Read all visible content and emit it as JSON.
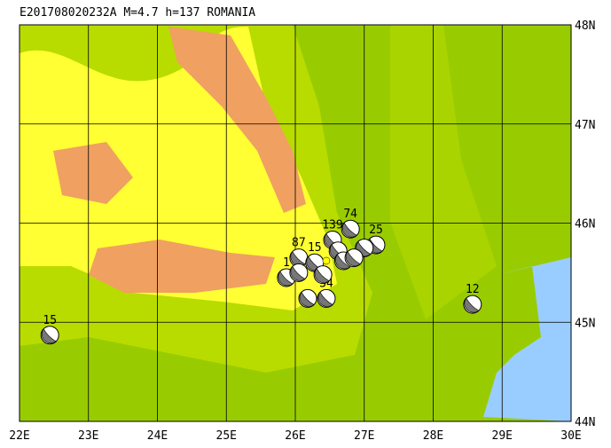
{
  "title": "E201708020232A  M=4.7  h=137  ROMANIA",
  "map": {
    "xlim": [
      22,
      30
    ],
    "ylim": [
      44,
      48
    ],
    "xticks": [
      {
        "value": 22,
        "label": "22E"
      },
      {
        "value": 23,
        "label": "23E"
      },
      {
        "value": 24,
        "label": "24E"
      },
      {
        "value": 25,
        "label": "25E"
      },
      {
        "value": 26,
        "label": "26E"
      },
      {
        "value": 27,
        "label": "27E"
      },
      {
        "value": 28,
        "label": "28E"
      },
      {
        "value": 29,
        "label": "29E"
      },
      {
        "value": 30,
        "label": "30E"
      }
    ],
    "yticks": [
      {
        "value": 44,
        "label": "44N"
      },
      {
        "value": 45,
        "label": "45N"
      },
      {
        "value": 46,
        "label": "46N"
      },
      {
        "value": 47,
        "label": "47N"
      },
      {
        "value": 48,
        "label": "48N"
      }
    ],
    "epicenter": {
      "lon": 26.45,
      "lat": 45.62
    },
    "events": [
      {
        "lon": 22.44,
        "lat": 44.87,
        "label": "15"
      },
      {
        "lon": 28.57,
        "lat": 45.18,
        "label": "12"
      },
      {
        "lon": 26.05,
        "lat": 45.65,
        "label": "87"
      },
      {
        "lon": 26.54,
        "lat": 45.83,
        "label": "139"
      },
      {
        "lon": 26.8,
        "lat": 45.94,
        "label": "74"
      },
      {
        "lon": 27.17,
        "lat": 45.78,
        "label": "25"
      },
      {
        "lon": 26.28,
        "lat": 45.6,
        "label": "15"
      },
      {
        "lon": 26.45,
        "lat": 45.24,
        "label": "34"
      },
      {
        "lon": 25.87,
        "lat": 45.45,
        "label": "1"
      },
      {
        "lon": 26.18,
        "lat": 45.24,
        "label": null
      },
      {
        "lon": 26.62,
        "lat": 45.72,
        "label": null
      },
      {
        "lon": 26.7,
        "lat": 45.62,
        "label": null
      },
      {
        "lon": 26.4,
        "lat": 45.48,
        "label": null
      },
      {
        "lon": 26.05,
        "lat": 45.5,
        "label": null
      },
      {
        "lon": 27.0,
        "lat": 45.75,
        "label": null
      },
      {
        "lon": 26.85,
        "lat": 45.65,
        "label": null
      }
    ]
  }
}
